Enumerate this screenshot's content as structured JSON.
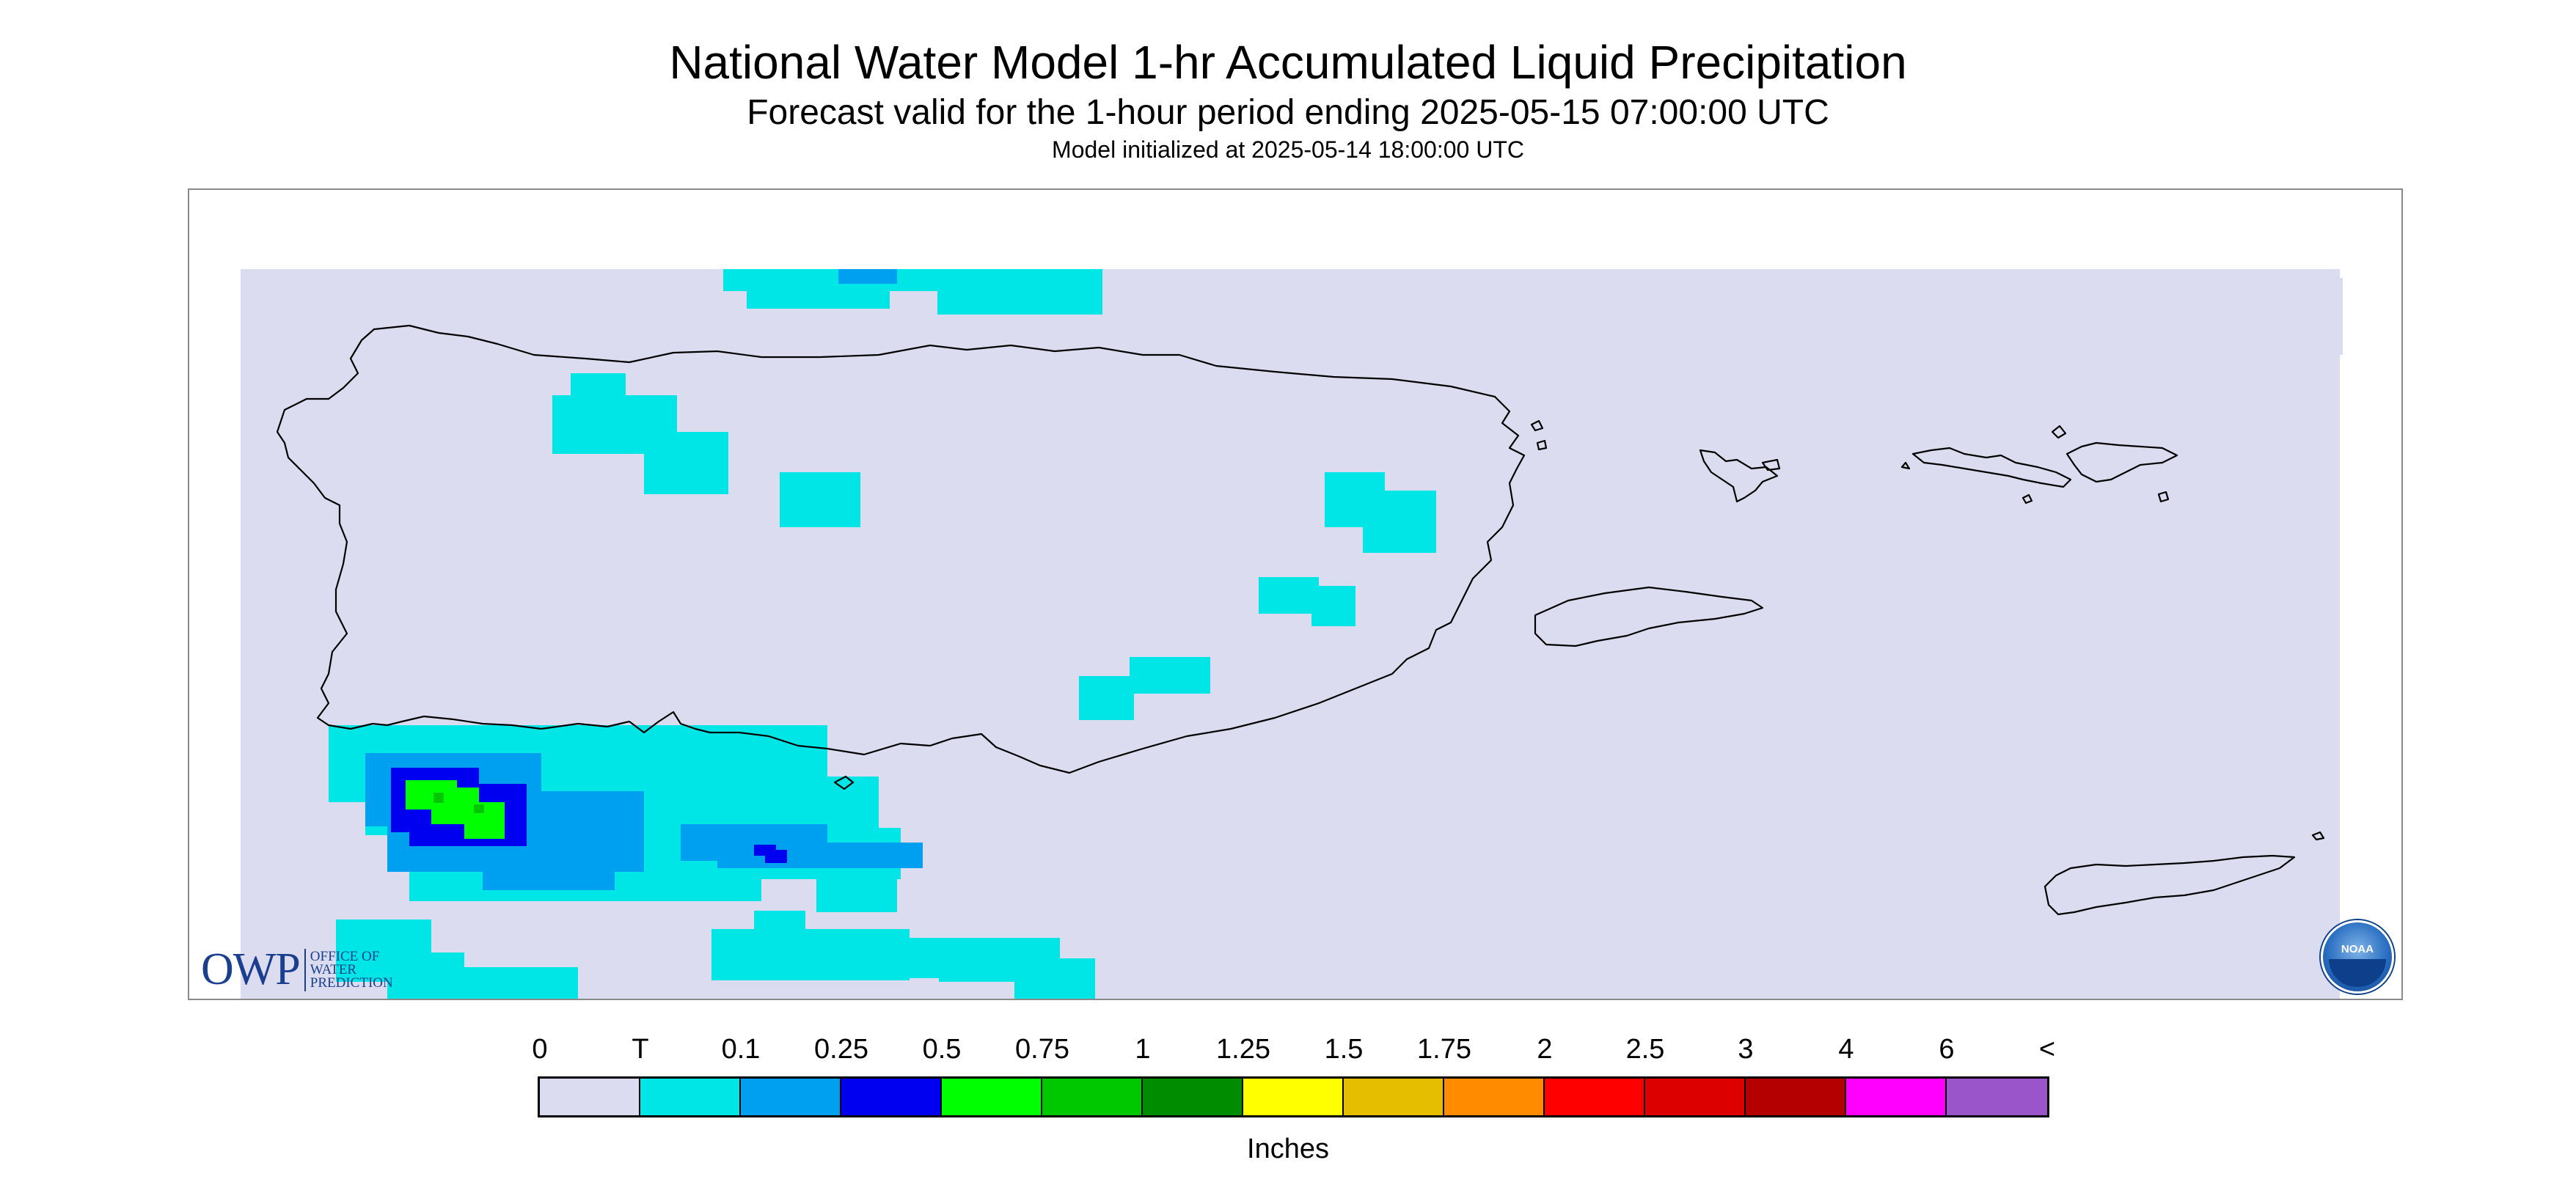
{
  "header": {
    "title": "National Water Model 1-hr Accumulated Liquid Precipitation",
    "subtitle": "Forecast valid for the 1-hour period ending 2025-05-15 07:00:00 UTC",
    "init_line": "Model initialized at 2025-05-14 18:00:00 UTC"
  },
  "logos": {
    "owp_main": "OWP",
    "owp_line1": "OFFICE OF",
    "owp_line2": "WATER",
    "owp_line3": "PREDICTION",
    "noaa": "NOAA"
  },
  "legend": {
    "label": "Inches",
    "ticks": [
      "0",
      "T",
      "0.1",
      "0.25",
      "0.5",
      "0.75",
      "1",
      "1.25",
      "1.5",
      "1.75",
      "2",
      "2.5",
      "3",
      "4",
      "6",
      "<"
    ],
    "colors": [
      "#dcdcf0",
      "#00e6e6",
      "#00a0f0",
      "#0000f0",
      "#00ff00",
      "#00c800",
      "#008c00",
      "#ffff00",
      "#e6be00",
      "#ff8c00",
      "#ff0000",
      "#dc0000",
      "#b40000",
      "#ff00ff",
      "#9955c9"
    ]
  },
  "colors": {
    "background_field": "#dcdcf0",
    "coastline": "#000000",
    "frame": "#8a8a8a"
  }
}
